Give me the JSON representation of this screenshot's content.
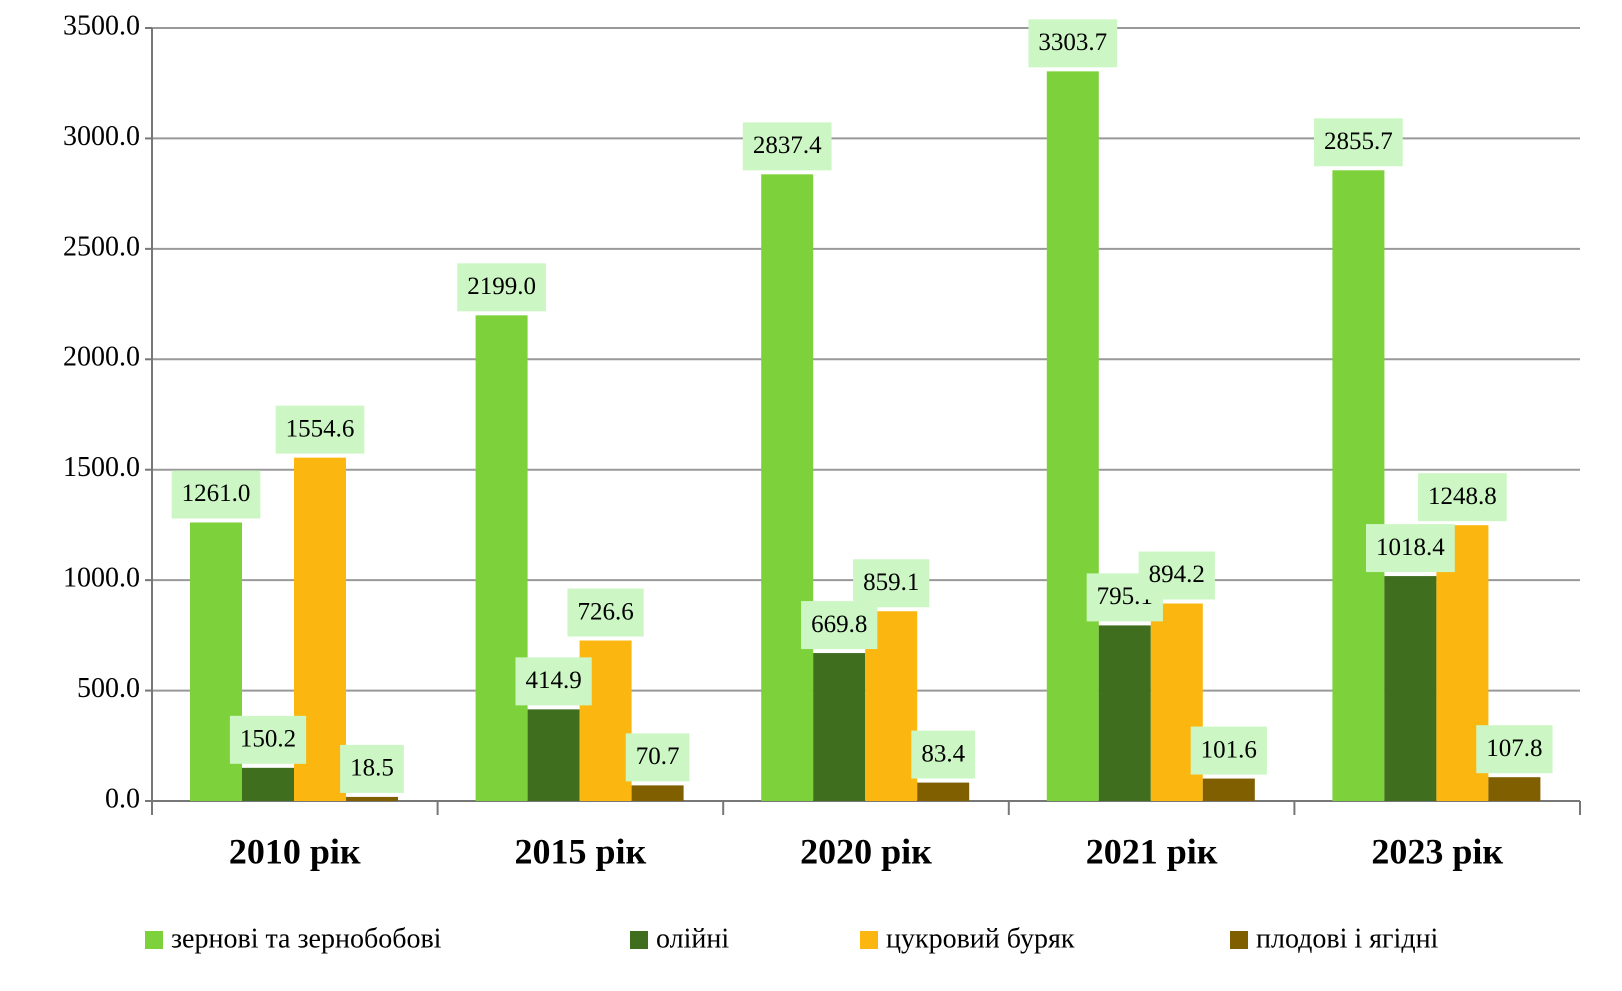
{
  "chart_data": {
    "type": "bar",
    "categories": [
      "2010 рік",
      "2015 рік",
      "2020 рік",
      "2021 рік",
      "2023 рік"
    ],
    "series": [
      {
        "name": "зернові та зернобобові",
        "color": "#7dd13a",
        "values": [
          1261.0,
          2199.0,
          2837.4,
          3303.7,
          2855.7
        ],
        "value_labels": [
          "1261.0",
          "2199.0",
          "2837.4",
          "3303.7",
          "2855.7"
        ]
      },
      {
        "name": "олійні",
        "color": "#3f6e1f",
        "values": [
          150.2,
          414.9,
          669.8,
          795.1,
          1018.4
        ],
        "value_labels": [
          "150.2",
          "414.9",
          "669.8",
          "795.1",
          "1018.4"
        ]
      },
      {
        "name": "цукровий буряк",
        "color": "#fbb610",
        "values": [
          1554.6,
          726.6,
          859.1,
          894.2,
          1248.8
        ],
        "value_labels": [
          "1554.6",
          "726.6",
          "859.1",
          "894.2",
          "1248.8"
        ]
      },
      {
        "name": "плодові і ягідні",
        "color": "#7f5f00",
        "values": [
          18.5,
          70.7,
          83.4,
          101.6,
          107.8
        ],
        "value_labels": [
          "18.5",
          "70.7",
          "83.4",
          "101.6",
          "107.8"
        ]
      }
    ],
    "ylim": [
      0,
      3500
    ],
    "yticks": [
      {
        "value": 0,
        "label": "0.0"
      },
      {
        "value": 500,
        "label": "500.0"
      },
      {
        "value": 1000,
        "label": "1000.0"
      },
      {
        "value": 1500,
        "label": "1500.0"
      },
      {
        "value": 2000,
        "label": "2000.0"
      },
      {
        "value": 2500,
        "label": "2500.0"
      },
      {
        "value": 3000,
        "label": "3000.0"
      },
      {
        "value": 3500,
        "label": "3500.0"
      }
    ],
    "grid": true,
    "legend": "bottom"
  }
}
